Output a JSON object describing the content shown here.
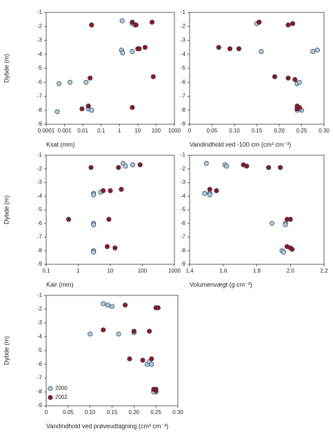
{
  "chart_data": [
    {
      "type": "scatter",
      "x_label": "Ksat (mm)",
      "y_label": "Dybde (m)",
      "xscale": "log",
      "xlim": [
        0.0001,
        1000
      ],
      "xticks": [
        0.0001,
        0.001,
        0.01,
        0.1,
        1,
        10,
        100,
        1000
      ],
      "ylim": [
        -9,
        -1
      ],
      "yticks": [
        -1,
        -2,
        -3,
        -4,
        -5,
        -6,
        -7,
        -8,
        -9
      ],
      "series": [
        {
          "color": "#a9cbe6",
          "x": [
            1.4,
            5,
            7,
            1.3,
            1.5,
            5,
            0.0005,
            0.002,
            0.015,
            0.0004,
            0.02,
            0.03
          ],
          "values": [
            -1.6,
            -1.8,
            -1.9,
            -3.7,
            -3.9,
            -3.8,
            -6.1,
            -6.0,
            -6.0,
            -8.1,
            -7.9,
            -8.0
          ]
        },
        {
          "color": "#8b1a2b",
          "x": [
            0.03,
            5,
            8,
            60,
            10,
            12,
            25,
            0.025,
            70,
            0.009,
            0.02,
            5
          ],
          "values": [
            -1.9,
            -1.7,
            -1.9,
            -1.7,
            -3.6,
            -3.6,
            -3.5,
            -5.7,
            -5.6,
            -7.9,
            -7.7,
            -7.8
          ]
        }
      ]
    },
    {
      "type": "scatter",
      "x_label": "Vandindhold ved -100 cm (cm³ cm⁻³)",
      "xlim": [
        0,
        0.3
      ],
      "xticks": [
        0,
        0.05,
        {
          "value": 0.1,
          "label": "0.10"
        },
        0.15,
        {
          "value": 0.2,
          "label": "0.20"
        },
        0.25,
        {
          "value": 0.3,
          "label": "0.30"
        }
      ],
      "ylim": [
        -9,
        -1
      ],
      "yticks": [
        -1,
        -2,
        -3,
        -4,
        -5,
        -6,
        -7,
        -8,
        -9
      ],
      "series": [
        {
          "color": "#a9cbe6",
          "x": [
            0.15,
            0.155,
            0.16,
            0.275,
            0.285,
            0.24,
            0.245,
            0.25,
            0.24,
            0.245
          ],
          "values": [
            -1.8,
            -1.7,
            -3.8,
            -3.8,
            -3.7,
            -6.1,
            -6.0,
            -8.0,
            -8.0,
            -7.9
          ]
        },
        {
          "color": "#8b1a2b",
          "x": [
            0.155,
            0.22,
            0.23,
            0.065,
            0.09,
            0.11,
            0.19,
            0.22,
            0.235,
            0.24,
            0.245,
            0.24
          ],
          "values": [
            -1.7,
            -1.9,
            -1.8,
            -3.5,
            -3.6,
            -3.6,
            -5.6,
            -5.7,
            -5.8,
            -7.7,
            -7.8,
            -7.9
          ]
        }
      ]
    },
    {
      "type": "scatter",
      "x_label": "Kair (mm)",
      "y_label": "Dybde (m)",
      "xscale": "log",
      "xlim": [
        0.1,
        1000
      ],
      "xticks": [
        0.1,
        1,
        10,
        100,
        1000
      ],
      "ylim": [
        -9,
        -1
      ],
      "yticks": [
        -1,
        -2,
        -3,
        -4,
        -5,
        -6,
        -7,
        -8,
        -9
      ],
      "series": [
        {
          "color": "#a9cbe6",
          "x": [
            25,
            30,
            50,
            3,
            3,
            5,
            3,
            3,
            3,
            3
          ],
          "values": [
            -1.6,
            -1.8,
            -1.7,
            -3.8,
            -3.9,
            -3.7,
            -6.0,
            -6.1,
            -8.0,
            -8.1
          ]
        },
        {
          "color": "#8b1a2b",
          "x": [
            2.5,
            18,
            85,
            6,
            10,
            22,
            0.5,
            9,
            8,
            14
          ],
          "values": [
            -1.9,
            -1.9,
            -1.7,
            -3.6,
            -3.6,
            -3.5,
            -5.7,
            -5.7,
            -7.7,
            -7.8
          ]
        }
      ]
    },
    {
      "type": "scatter",
      "x_label": "Volumenvægt (g cm⁻³)",
      "xlim": [
        1.4,
        2.2
      ],
      "xticks": [
        1.4,
        1.6,
        1.8,
        {
          "value": 2,
          "label": "2.0"
        },
        2.2
      ],
      "ylim": [
        -9,
        -1
      ],
      "yticks": [
        -1,
        -2,
        -3,
        -4,
        -5,
        -6,
        -7,
        -8,
        -9
      ],
      "series": [
        {
          "color": "#a9cbe6",
          "x": [
            1.5,
            1.61,
            1.62,
            1.49,
            1.52,
            1.52,
            1.89,
            1.97,
            1.97,
            1.95,
            1.96
          ],
          "values": [
            -1.6,
            -1.7,
            -1.8,
            -3.8,
            -3.8,
            -3.9,
            -6.0,
            -6.0,
            -6.1,
            -8.0,
            -8.1
          ]
        },
        {
          "color": "#8b1a2b",
          "x": [
            1.72,
            1.74,
            1.87,
            1.94,
            1.52,
            1.56,
            1.98,
            2.0,
            1.98,
            2.0,
            2.01
          ],
          "values": [
            -1.7,
            -1.8,
            -1.9,
            -1.9,
            -3.5,
            -3.6,
            -5.7,
            -5.7,
            -7.7,
            -7.8,
            -7.9
          ]
        }
      ]
    },
    {
      "type": "scatter",
      "x_label": "Vandindhold ved prøveudtagning (cm³ cm⁻³)",
      "y_label": "Dybde (m)",
      "xlim": [
        0,
        0.3
      ],
      "xticks": [
        0,
        0.05,
        {
          "value": 0.1,
          "label": "0.10"
        },
        0.15,
        {
          "value": 0.2,
          "label": "0.20"
        },
        0.25,
        {
          "value": 0.3,
          "label": "0.30"
        }
      ],
      "ylim": [
        -9,
        -1
      ],
      "yticks": [
        -1,
        -2,
        -3,
        -4,
        -5,
        -6,
        -7,
        -8,
        -9
      ],
      "legend": "lower left",
      "series": [
        {
          "name": "2000",
          "color": "#a9cbe6",
          "x": [
            0.13,
            0.14,
            0.15,
            0.1,
            0.165,
            0.2,
            0.23,
            0.235,
            0.24,
            0.245,
            0.25,
            0.245
          ],
          "values": [
            -1.6,
            -1.7,
            -1.8,
            -3.8,
            -3.8,
            -3.7,
            -6.0,
            -5.8,
            -6.0,
            -7.9,
            -8.0,
            -8.0
          ]
        },
        {
          "name": "2002",
          "color": "#8b1a2b",
          "x": [
            0.18,
            0.25,
            0.255,
            0.13,
            0.2,
            0.235,
            0.19,
            0.22,
            0.24,
            0.245,
            0.25,
            0.25
          ],
          "values": [
            -1.7,
            -1.9,
            -1.9,
            -3.5,
            -3.6,
            -3.6,
            -5.6,
            -5.7,
            -5.6,
            -7.8,
            -7.9,
            -7.8
          ]
        }
      ]
    }
  ]
}
